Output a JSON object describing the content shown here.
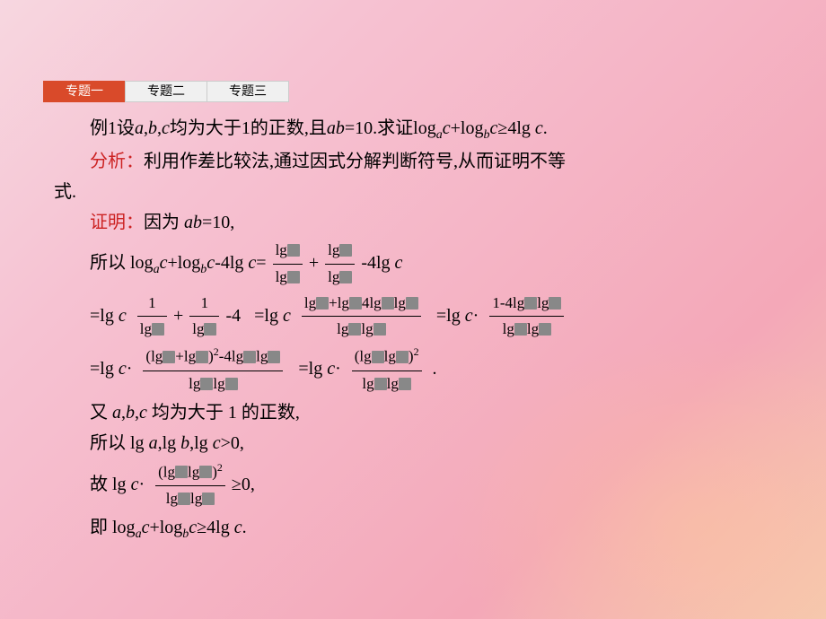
{
  "colors": {
    "bg_top_left": "#f7d7e0",
    "bg_mid": "#f5b5c6",
    "bg_bottom_right": "#f5c8b0",
    "tab_active_bg": "#d94a2a",
    "tab_active_fg": "#ffffff",
    "tab_inactive_bg": "#f0f0f0",
    "tab_border": "#cccccc",
    "accent_red": "#cc2222",
    "text": "#000000",
    "placeholder_box": "#888888"
  },
  "typography": {
    "body_font": "KaiTi / 楷体",
    "body_size_pt": 15,
    "tab_size_pt": 11,
    "line_height": 1.7
  },
  "tabs": {
    "items": [
      "专题一",
      "专题二",
      "专题三"
    ],
    "active_index": 0
  },
  "text": {
    "example_label": "例1",
    "problem": "设a,b,c均为大于1的正数,且ab=10.求证logₐc+log_bc≥4lg c.",
    "analysis_label": "分析：",
    "analysis_body_a": "利用作差比较法,通过因式分解判断符号,从而证明不等",
    "analysis_body_b": "式.",
    "proof_label": "证明：",
    "line_because": "因为 ab=10,",
    "line_so_prefix": "所以 ",
    "expr_lhs": "logₐc+log_bc-4lg c=",
    "expr_step2a_pre": "=lg c",
    "expr_step2b_pre": " =lg c",
    "expr_step2c_pre": " =lg c·",
    "expr_step3a_pre": "=lg c·",
    "expr_step3b_pre": " =lg c·",
    "line_also": "又 a,b,c 均为大于 1 的正数,",
    "line_so2": "所以 lg a,lg b,lg c>0,",
    "line_hence_pre": "故 lg c·",
    "line_hence_post": " ≥0,",
    "line_conclude": "即 logₐc+log_bc≥4lg c.",
    "frac_plus": "+",
    "frac_minus4lgc": "-4lg c",
    "frac_minus4": "-4",
    "frac_one": "1",
    "frac_lg": "lg",
    "frac_4lg": "4lg",
    "frac_1m4lg": "1-4lg",
    "frac_paren_lg": "(lg",
    "frac_paren_close_sq": ")",
    "frac_dot": "·",
    "frac_period": "."
  }
}
